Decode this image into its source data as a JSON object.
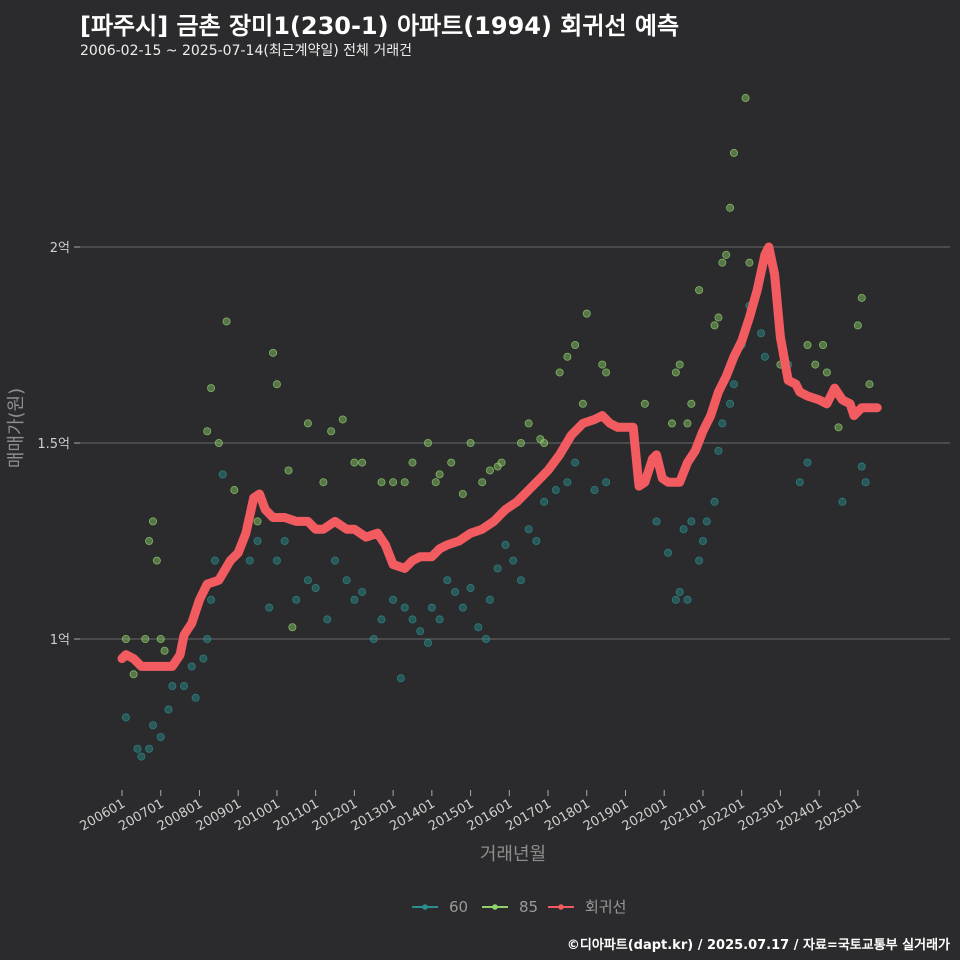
{
  "header": {
    "title": "[파주시] 금촌 장미1(230-1) 아파트(1994) 회귀선 예측",
    "subtitle": "2006-02-15 ~ 2025-07-14(최근계약일) 전체 거래건"
  },
  "footer": {
    "credit": "©디아파트(dapt.kr) / 2025.07.17 / 자료=국토교통부 실거래가"
  },
  "colors": {
    "s60": "#2a8f8f",
    "s85": "#8fd16a",
    "trend": "#f25c60",
    "grid": "#6a6a6a"
  },
  "chart_data": {
    "type": "scatter",
    "xlabel": "거래년월",
    "ylabel": "매매가(원)",
    "xlim": [
      2005.8,
      2025.9
    ],
    "ylim": [
      0.62,
      2.4
    ],
    "ytick_values": [
      1.0,
      1.5,
      2.0
    ],
    "ytick_labels": [
      "1억",
      "1.5억",
      "2억"
    ],
    "xtick_labels": [
      "200601",
      "200701",
      "200801",
      "200901",
      "201001",
      "201101",
      "201201",
      "201301",
      "201401",
      "201501",
      "201601",
      "201701",
      "201801",
      "201901",
      "202001",
      "202101",
      "202201",
      "202301",
      "202401",
      "202501"
    ],
    "legend": [
      {
        "key": "s60",
        "label": "60",
        "color": "#2a8f8f"
      },
      {
        "key": "s85",
        "label": "85",
        "color": "#8fd16a"
      },
      {
        "key": "trend",
        "label": "회귀선",
        "color": "#f25c60"
      }
    ],
    "series": [
      {
        "name": "60",
        "color": "#2a8f8f",
        "points": [
          [
            2006.1,
            0.8
          ],
          [
            2006.4,
            0.72
          ],
          [
            2006.5,
            0.7
          ],
          [
            2006.7,
            0.72
          ],
          [
            2006.8,
            0.78
          ],
          [
            2007.0,
            0.75
          ],
          [
            2007.2,
            0.82
          ],
          [
            2007.3,
            0.88
          ],
          [
            2007.6,
            0.88
          ],
          [
            2007.8,
            0.93
          ],
          [
            2007.9,
            0.85
          ],
          [
            2008.1,
            0.95
          ],
          [
            2008.2,
            1.0
          ],
          [
            2008.3,
            1.1
          ],
          [
            2008.4,
            1.2
          ],
          [
            2008.6,
            1.42
          ],
          [
            2009.3,
            1.2
          ],
          [
            2009.5,
            1.25
          ],
          [
            2009.8,
            1.08
          ],
          [
            2010.0,
            1.2
          ],
          [
            2010.2,
            1.25
          ],
          [
            2010.5,
            1.1
          ],
          [
            2010.8,
            1.15
          ],
          [
            2011.0,
            1.13
          ],
          [
            2011.3,
            1.05
          ],
          [
            2011.5,
            1.2
          ],
          [
            2011.8,
            1.15
          ],
          [
            2012.0,
            1.1
          ],
          [
            2012.2,
            1.12
          ],
          [
            2012.5,
            1.0
          ],
          [
            2012.7,
            1.05
          ],
          [
            2013.0,
            1.1
          ],
          [
            2013.2,
            0.9
          ],
          [
            2013.3,
            1.08
          ],
          [
            2013.5,
            1.05
          ],
          [
            2013.7,
            1.02
          ],
          [
            2013.9,
            0.99
          ],
          [
            2014.0,
            1.08
          ],
          [
            2014.2,
            1.05
          ],
          [
            2014.4,
            1.15
          ],
          [
            2014.6,
            1.12
          ],
          [
            2014.8,
            1.08
          ],
          [
            2015.0,
            1.13
          ],
          [
            2015.2,
            1.03
          ],
          [
            2015.4,
            1.0
          ],
          [
            2015.5,
            1.1
          ],
          [
            2015.7,
            1.18
          ],
          [
            2015.9,
            1.24
          ],
          [
            2016.1,
            1.2
          ],
          [
            2016.3,
            1.15
          ],
          [
            2016.5,
            1.28
          ],
          [
            2016.7,
            1.25
          ],
          [
            2016.9,
            1.35
          ],
          [
            2017.2,
            1.38
          ],
          [
            2017.5,
            1.4
          ],
          [
            2017.7,
            1.45
          ],
          [
            2018.2,
            1.38
          ],
          [
            2018.5,
            1.4
          ],
          [
            2019.8,
            1.3
          ],
          [
            2020.1,
            1.22
          ],
          [
            2020.3,
            1.1
          ],
          [
            2020.4,
            1.12
          ],
          [
            2020.5,
            1.28
          ],
          [
            2020.6,
            1.1
          ],
          [
            2020.7,
            1.3
          ],
          [
            2020.9,
            1.2
          ],
          [
            2021.0,
            1.25
          ],
          [
            2021.1,
            1.3
          ],
          [
            2021.3,
            1.35
          ],
          [
            2021.4,
            1.48
          ],
          [
            2021.5,
            1.55
          ],
          [
            2021.7,
            1.6
          ],
          [
            2021.8,
            1.65
          ],
          [
            2022.0,
            1.75
          ],
          [
            2022.2,
            1.85
          ],
          [
            2022.5,
            1.78
          ],
          [
            2022.6,
            1.72
          ],
          [
            2023.2,
            1.7
          ],
          [
            2023.5,
            1.4
          ],
          [
            2023.7,
            1.45
          ],
          [
            2024.6,
            1.35
          ],
          [
            2025.1,
            1.44
          ],
          [
            2025.2,
            1.4
          ]
        ]
      },
      {
        "name": "85",
        "color": "#8fd16a",
        "points": [
          [
            2006.1,
            1.0
          ],
          [
            2006.3,
            0.91
          ],
          [
            2006.6,
            1.0
          ],
          [
            2006.7,
            1.25
          ],
          [
            2006.8,
            1.3
          ],
          [
            2006.9,
            1.2
          ],
          [
            2007.0,
            1.0
          ],
          [
            2007.1,
            0.97
          ],
          [
            2008.2,
            1.53
          ],
          [
            2008.3,
            1.64
          ],
          [
            2008.5,
            1.5
          ],
          [
            2008.7,
            1.81
          ],
          [
            2008.9,
            1.38
          ],
          [
            2009.5,
            1.3
          ],
          [
            2009.9,
            1.73
          ],
          [
            2010.0,
            1.65
          ],
          [
            2010.3,
            1.43
          ],
          [
            2010.4,
            1.03
          ],
          [
            2010.8,
            1.55
          ],
          [
            2011.2,
            1.4
          ],
          [
            2011.4,
            1.53
          ],
          [
            2011.7,
            1.56
          ],
          [
            2012.0,
            1.45
          ],
          [
            2012.2,
            1.45
          ],
          [
            2012.7,
            1.4
          ],
          [
            2013.0,
            1.4
          ],
          [
            2013.3,
            1.4
          ],
          [
            2013.5,
            1.45
          ],
          [
            2013.9,
            1.5
          ],
          [
            2014.1,
            1.4
          ],
          [
            2014.2,
            1.42
          ],
          [
            2014.5,
            1.45
          ],
          [
            2014.8,
            1.37
          ],
          [
            2015.0,
            1.5
          ],
          [
            2015.3,
            1.4
          ],
          [
            2015.5,
            1.43
          ],
          [
            2015.7,
            1.44
          ],
          [
            2015.8,
            1.45
          ],
          [
            2016.3,
            1.5
          ],
          [
            2016.5,
            1.55
          ],
          [
            2016.8,
            1.51
          ],
          [
            2016.9,
            1.5
          ],
          [
            2017.3,
            1.68
          ],
          [
            2017.5,
            1.72
          ],
          [
            2017.7,
            1.75
          ],
          [
            2017.9,
            1.6
          ],
          [
            2018.0,
            1.83
          ],
          [
            2018.4,
            1.7
          ],
          [
            2018.5,
            1.68
          ],
          [
            2019.5,
            1.6
          ],
          [
            2020.2,
            1.55
          ],
          [
            2020.3,
            1.68
          ],
          [
            2020.4,
            1.7
          ],
          [
            2020.6,
            1.55
          ],
          [
            2020.7,
            1.6
          ],
          [
            2020.9,
            1.89
          ],
          [
            2021.3,
            1.8
          ],
          [
            2021.4,
            1.82
          ],
          [
            2021.5,
            1.96
          ],
          [
            2021.6,
            1.98
          ],
          [
            2021.7,
            2.1
          ],
          [
            2021.8,
            2.24
          ],
          [
            2022.1,
            2.38
          ],
          [
            2022.2,
            1.96
          ],
          [
            2023.0,
            1.7
          ],
          [
            2023.7,
            1.75
          ],
          [
            2023.9,
            1.7
          ],
          [
            2024.1,
            1.75
          ],
          [
            2024.2,
            1.68
          ],
          [
            2024.5,
            1.54
          ],
          [
            2025.0,
            1.8
          ],
          [
            2025.1,
            1.87
          ],
          [
            2025.3,
            1.65
          ]
        ]
      },
      {
        "name": "회귀선",
        "color": "#f25c60",
        "points": [
          [
            2006.0,
            0.95
          ],
          [
            2006.1,
            0.96
          ],
          [
            2006.3,
            0.95
          ],
          [
            2006.5,
            0.93
          ],
          [
            2007.0,
            0.93
          ],
          [
            2007.3,
            0.93
          ],
          [
            2007.5,
            0.96
          ],
          [
            2007.6,
            1.01
          ],
          [
            2007.8,
            1.04
          ],
          [
            2008.0,
            1.1
          ],
          [
            2008.2,
            1.14
          ],
          [
            2008.5,
            1.15
          ],
          [
            2008.8,
            1.2
          ],
          [
            2009.0,
            1.22
          ],
          [
            2009.2,
            1.27
          ],
          [
            2009.4,
            1.36
          ],
          [
            2009.55,
            1.37
          ],
          [
            2009.7,
            1.33
          ],
          [
            2009.9,
            1.31
          ],
          [
            2010.2,
            1.31
          ],
          [
            2010.5,
            1.3
          ],
          [
            2010.8,
            1.3
          ],
          [
            2011.0,
            1.28
          ],
          [
            2011.2,
            1.28
          ],
          [
            2011.5,
            1.3
          ],
          [
            2011.8,
            1.28
          ],
          [
            2012.0,
            1.28
          ],
          [
            2012.3,
            1.26
          ],
          [
            2012.6,
            1.27
          ],
          [
            2012.8,
            1.24
          ],
          [
            2013.0,
            1.19
          ],
          [
            2013.3,
            1.18
          ],
          [
            2013.5,
            1.2
          ],
          [
            2013.7,
            1.21
          ],
          [
            2014.0,
            1.21
          ],
          [
            2014.2,
            1.23
          ],
          [
            2014.4,
            1.24
          ],
          [
            2014.7,
            1.25
          ],
          [
            2015.0,
            1.27
          ],
          [
            2015.3,
            1.28
          ],
          [
            2015.6,
            1.3
          ],
          [
            2015.9,
            1.33
          ],
          [
            2016.2,
            1.35
          ],
          [
            2016.5,
            1.38
          ],
          [
            2016.8,
            1.41
          ],
          [
            2017.0,
            1.43
          ],
          [
            2017.3,
            1.47
          ],
          [
            2017.6,
            1.52
          ],
          [
            2017.9,
            1.55
          ],
          [
            2018.2,
            1.56
          ],
          [
            2018.4,
            1.57
          ],
          [
            2018.6,
            1.55
          ],
          [
            2018.8,
            1.54
          ],
          [
            2019.0,
            1.54
          ],
          [
            2019.2,
            1.54
          ],
          [
            2019.35,
            1.39
          ],
          [
            2019.5,
            1.4
          ],
          [
            2019.7,
            1.46
          ],
          [
            2019.8,
            1.47
          ],
          [
            2019.95,
            1.41
          ],
          [
            2020.1,
            1.4
          ],
          [
            2020.4,
            1.4
          ],
          [
            2020.6,
            1.45
          ],
          [
            2020.8,
            1.48
          ],
          [
            2021.0,
            1.53
          ],
          [
            2021.2,
            1.57
          ],
          [
            2021.4,
            1.63
          ],
          [
            2021.6,
            1.67
          ],
          [
            2021.8,
            1.72
          ],
          [
            2022.0,
            1.76
          ],
          [
            2022.2,
            1.82
          ],
          [
            2022.4,
            1.89
          ],
          [
            2022.6,
            1.98
          ],
          [
            2022.7,
            2.0
          ],
          [
            2022.85,
            1.93
          ],
          [
            2023.0,
            1.77
          ],
          [
            2023.2,
            1.66
          ],
          [
            2023.4,
            1.65
          ],
          [
            2023.5,
            1.63
          ],
          [
            2023.7,
            1.62
          ],
          [
            2024.0,
            1.61
          ],
          [
            2024.2,
            1.6
          ],
          [
            2024.4,
            1.64
          ],
          [
            2024.6,
            1.61
          ],
          [
            2024.8,
            1.6
          ],
          [
            2024.9,
            1.57
          ],
          [
            2025.1,
            1.59
          ],
          [
            2025.5,
            1.59
          ]
        ]
      }
    ]
  }
}
